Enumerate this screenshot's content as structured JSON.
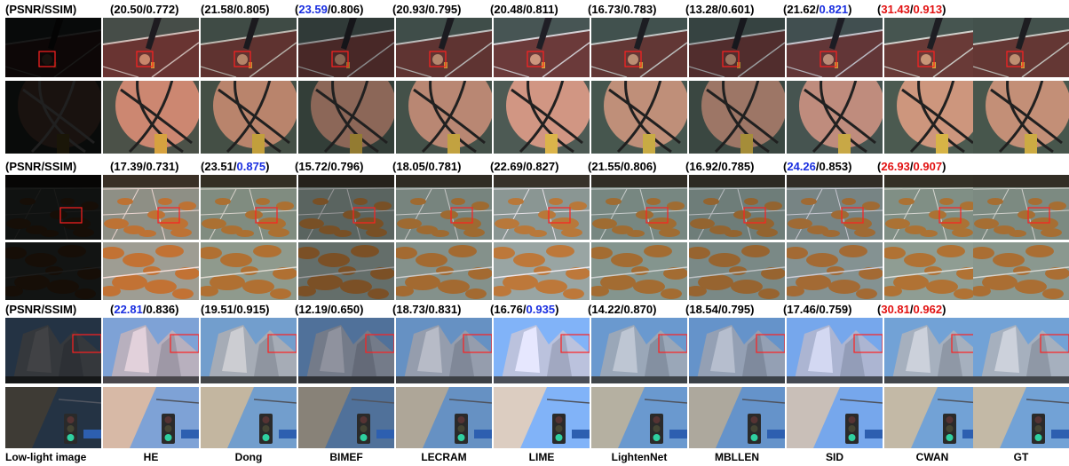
{
  "figure": {
    "columns": [
      "Low-light image",
      "HE",
      "Dong",
      "BIMEF",
      "LECRAM",
      "LIME",
      "LightenNet",
      "MBLLEN",
      "SID",
      "CWAN",
      "GT"
    ],
    "groups": [
      {
        "header": "(PSNR/SSIM)",
        "scene": "basketball",
        "metrics": [
          {
            "psnr": "20.50",
            "ssim": "0.772",
            "psnr_hl": "",
            "ssim_hl": ""
          },
          {
            "psnr": "21.58",
            "ssim": "0.805",
            "psnr_hl": "",
            "ssim_hl": ""
          },
          {
            "psnr": "23.59",
            "ssim": "0.806",
            "psnr_hl": "blue",
            "ssim_hl": ""
          },
          {
            "psnr": "20.93",
            "ssim": "0.795",
            "psnr_hl": "",
            "ssim_hl": ""
          },
          {
            "psnr": "20.48",
            "ssim": "0.811",
            "psnr_hl": "",
            "ssim_hl": ""
          },
          {
            "psnr": "16.73",
            "ssim": "0.783",
            "psnr_hl": "",
            "ssim_hl": ""
          },
          {
            "psnr": "13.28",
            "ssim": "0.601",
            "psnr_hl": "",
            "ssim_hl": ""
          },
          {
            "psnr": "21.62",
            "ssim": "0.821",
            "psnr_hl": "",
            "ssim_hl": "blue"
          },
          {
            "psnr": "31.43",
            "ssim": "0.913",
            "psnr_hl": "red",
            "ssim_hl": "red"
          }
        ]
      },
      {
        "header": "(PSNR/SSIM)",
        "scene": "court",
        "metrics": [
          {
            "psnr": "17.39",
            "ssim": "0.731",
            "psnr_hl": "",
            "ssim_hl": ""
          },
          {
            "psnr": "23.51",
            "ssim": "0.875",
            "psnr_hl": "",
            "ssim_hl": "blue"
          },
          {
            "psnr": "15.72",
            "ssim": "0.796",
            "psnr_hl": "",
            "ssim_hl": ""
          },
          {
            "psnr": "18.05",
            "ssim": "0.781",
            "psnr_hl": "",
            "ssim_hl": ""
          },
          {
            "psnr": "22.69",
            "ssim": "0.827",
            "psnr_hl": "",
            "ssim_hl": ""
          },
          {
            "psnr": "21.55",
            "ssim": "0.806",
            "psnr_hl": "",
            "ssim_hl": ""
          },
          {
            "psnr": "16.92",
            "ssim": "0.785",
            "psnr_hl": "",
            "ssim_hl": ""
          },
          {
            "psnr": "24.26",
            "ssim": "0.853",
            "psnr_hl": "blue",
            "ssim_hl": ""
          },
          {
            "psnr": "26.93",
            "ssim": "0.907",
            "psnr_hl": "red",
            "ssim_hl": "red"
          }
        ]
      },
      {
        "header": "(PSNR/SSIM)",
        "scene": "building",
        "metrics": [
          {
            "psnr": "22.81",
            "ssim": "0.836",
            "psnr_hl": "blue",
            "ssim_hl": ""
          },
          {
            "psnr": "19.51",
            "ssim": "0.915",
            "psnr_hl": "",
            "ssim_hl": ""
          },
          {
            "psnr": "12.19",
            "ssim": "0.650",
            "psnr_hl": "",
            "ssim_hl": ""
          },
          {
            "psnr": "18.73",
            "ssim": "0.831",
            "psnr_hl": "",
            "ssim_hl": ""
          },
          {
            "psnr": "16.76",
            "ssim": "0.935",
            "psnr_hl": "",
            "ssim_hl": "blue"
          },
          {
            "psnr": "14.22",
            "ssim": "0.870",
            "psnr_hl": "",
            "ssim_hl": ""
          },
          {
            "psnr": "18.54",
            "ssim": "0.795",
            "psnr_hl": "",
            "ssim_hl": ""
          },
          {
            "psnr": "17.46",
            "ssim": "0.759",
            "psnr_hl": "",
            "ssim_hl": ""
          },
          {
            "psnr": "30.81",
            "ssim": "0.962",
            "psnr_hl": "red",
            "ssim_hl": "red"
          }
        ]
      }
    ],
    "colors": {
      "best": "#e21212",
      "second_best": "#1a2fe0",
      "zoom_box": "#ff2020"
    },
    "brightness": {
      "basketball": [
        0.12,
        0.95,
        0.9,
        0.72,
        0.9,
        1.0,
        0.95,
        0.8,
        0.95,
        1.0,
        0.95
      ],
      "court": [
        0.12,
        1.0,
        0.95,
        0.7,
        0.88,
        1.0,
        0.9,
        0.85,
        0.9,
        0.95,
        0.92
      ],
      "building": [
        0.3,
        1.0,
        0.95,
        0.7,
        0.85,
        1.05,
        0.9,
        0.88,
        1.0,
        0.95,
        0.95
      ]
    }
  }
}
